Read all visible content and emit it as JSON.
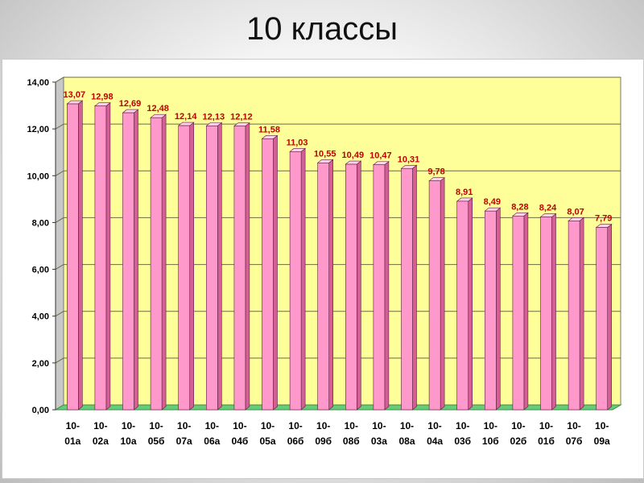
{
  "slide": {
    "title": "10 классы"
  },
  "colors": {
    "plot_back": "#ffff99",
    "plot_side": "#c8c8c8",
    "floor": "#66cc77",
    "bar_front": "#ff99cc",
    "bar_side": "#d45f95",
    "bar_top": "#ffd2ea",
    "bar_edge": "#5a1f3f",
    "data_label": "#c00000"
  },
  "chart_data": {
    "type": "bar",
    "categories": [
      [
        "10-",
        "01а"
      ],
      [
        "10-",
        "02а"
      ],
      [
        "10-",
        "10а"
      ],
      [
        "10-",
        "05б"
      ],
      [
        "10-",
        "07а"
      ],
      [
        "10-",
        "06а"
      ],
      [
        "10-",
        "04б"
      ],
      [
        "10-",
        "05а"
      ],
      [
        "10-",
        "06б"
      ],
      [
        "10-",
        "09б"
      ],
      [
        "10-",
        "08б"
      ],
      [
        "10-",
        "03а"
      ],
      [
        "10-",
        "08а"
      ],
      [
        "10-",
        "04а"
      ],
      [
        "10-",
        "03б"
      ],
      [
        "10-",
        "10б"
      ],
      [
        "10-",
        "02б"
      ],
      [
        "10-",
        "01б"
      ],
      [
        "10-",
        "07б"
      ],
      [
        "10-",
        "09а"
      ]
    ],
    "values": [
      13.07,
      12.98,
      12.69,
      12.48,
      12.14,
      12.13,
      12.12,
      11.58,
      11.03,
      10.55,
      10.49,
      10.47,
      10.31,
      9.78,
      8.91,
      8.49,
      8.28,
      8.24,
      8.07,
      7.79
    ],
    "data_labels": [
      "13,07",
      "12,98",
      "12,69",
      "12,48",
      "12,14",
      "12,13",
      "12,12",
      "11,58",
      "11,03",
      "10,55",
      "10,49",
      "10,47",
      "10,31",
      "9,78",
      "8,91",
      "8,49",
      "8,28",
      "8,24",
      "8,07",
      "7,79"
    ],
    "y_ticks": [
      0,
      2,
      4,
      6,
      8,
      10,
      12,
      14
    ],
    "y_tick_labels": [
      "0,00",
      "2,00",
      "4,00",
      "6,00",
      "8,00",
      "10,00",
      "12,00",
      "14,00"
    ],
    "ylim": [
      0,
      14
    ],
    "grid": true,
    "legend": "none"
  }
}
